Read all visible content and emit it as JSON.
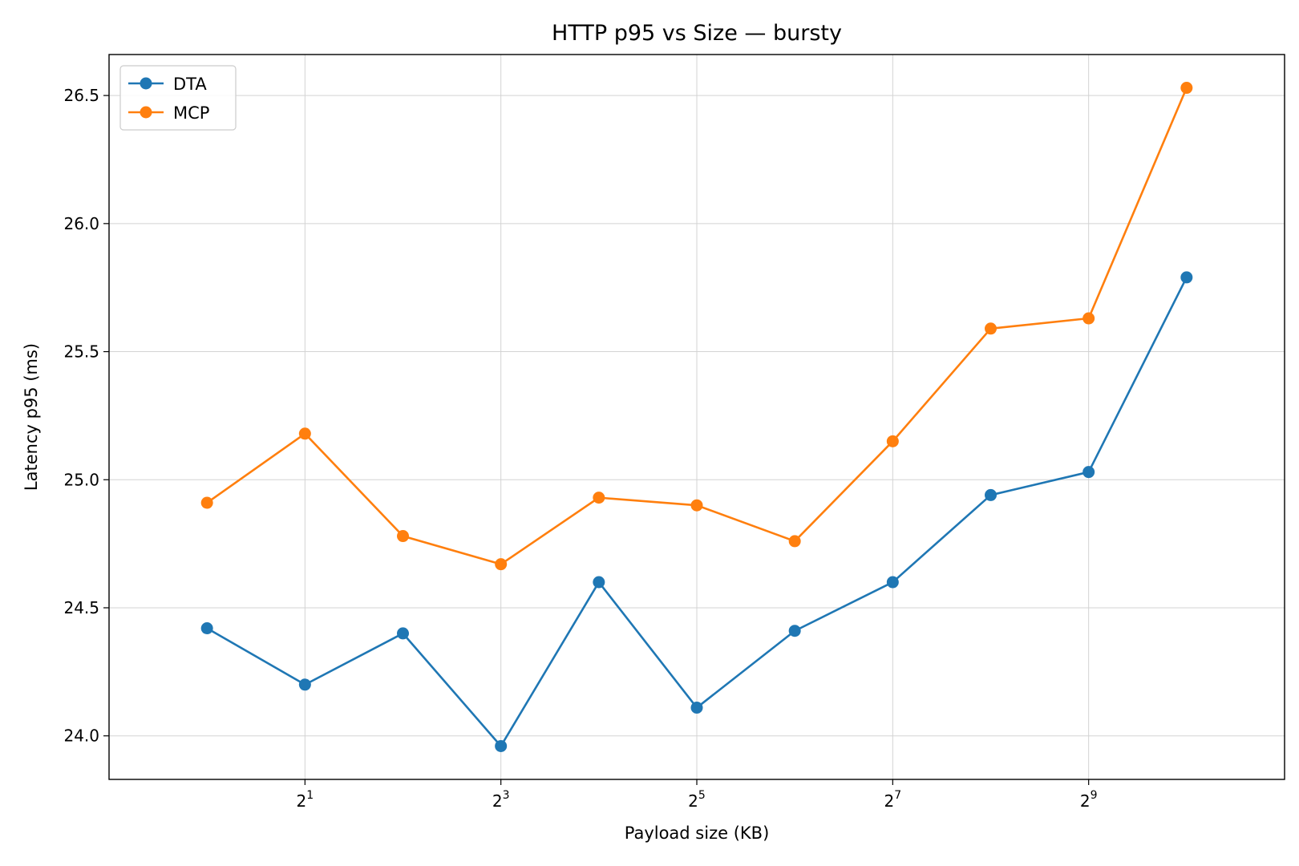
{
  "chart_data": {
    "type": "line",
    "title": "HTTP p95 vs Size — bursty",
    "xlabel": "Payload size (KB)",
    "ylabel": "Latency p95 (ms)",
    "x_scale": "log2",
    "x": [
      1,
      2,
      4,
      8,
      16,
      32,
      64,
      128,
      256,
      512,
      1024
    ],
    "xlim": [
      0.5,
      2048
    ],
    "ylim": [
      23.83,
      26.66
    ],
    "x_ticks": [
      {
        "base": "2",
        "exp": "1",
        "value": 2
      },
      {
        "base": "2",
        "exp": "3",
        "value": 8
      },
      {
        "base": "2",
        "exp": "5",
        "value": 32
      },
      {
        "base": "2",
        "exp": "7",
        "value": 128
      },
      {
        "base": "2",
        "exp": "9",
        "value": 512
      }
    ],
    "y_ticks": [
      "24.0",
      "24.5",
      "25.0",
      "25.5",
      "26.0",
      "26.5"
    ],
    "grid": true,
    "legend_position": "top-left",
    "series": [
      {
        "name": "DTA",
        "color": "#1f77b4",
        "values": [
          24.42,
          24.2,
          24.4,
          23.96,
          24.6,
          24.11,
          24.41,
          24.6,
          24.94,
          25.03,
          25.79
        ]
      },
      {
        "name": "MCP",
        "color": "#ff7f0e",
        "values": [
          24.91,
          25.18,
          24.78,
          24.67,
          24.93,
          24.9,
          24.76,
          25.15,
          25.59,
          25.63,
          26.53
        ]
      }
    ]
  }
}
